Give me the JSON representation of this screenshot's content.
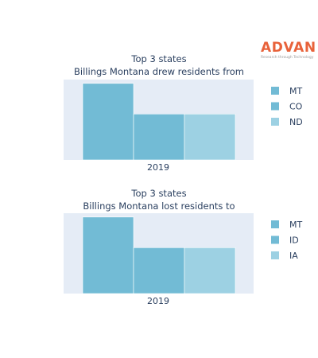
{
  "brand": {
    "name": "ADVAN",
    "tagline": "Research through Technology",
    "color": "#e8623a"
  },
  "colors": {
    "plot_background": "#e5ecf6",
    "text": "#2a3f5f"
  },
  "chart_data": [
    {
      "type": "bar",
      "title": "Top 3 states",
      "subtitle": "Billings Montana drew residents from",
      "categories": [
        "2019"
      ],
      "series": [
        {
          "name": "MT",
          "values": [
            1.0
          ],
          "color": "#72bbd5"
        },
        {
          "name": "CO",
          "values": [
            0.6
          ],
          "color": "#72bbd5"
        },
        {
          "name": "ND",
          "values": [
            0.6
          ],
          "color": "#9dd1e3"
        }
      ],
      "ylim": [
        0,
        1.05
      ],
      "xlabel": "",
      "ylabel": "",
      "y_axis_labels": false,
      "grid": false,
      "legend": "right"
    },
    {
      "type": "bar",
      "title": "Top 3 states",
      "subtitle": "Billings Montana lost residents to",
      "categories": [
        "2019"
      ],
      "series": [
        {
          "name": "MT",
          "values": [
            1.0
          ],
          "color": "#72bbd5"
        },
        {
          "name": "ID",
          "values": [
            0.6
          ],
          "color": "#72bbd5"
        },
        {
          "name": "IA",
          "values": [
            0.6
          ],
          "color": "#9dd1e3"
        }
      ],
      "ylim": [
        0,
        1.05
      ],
      "xlabel": "",
      "ylabel": "",
      "y_axis_labels": false,
      "grid": false,
      "legend": "right"
    }
  ]
}
